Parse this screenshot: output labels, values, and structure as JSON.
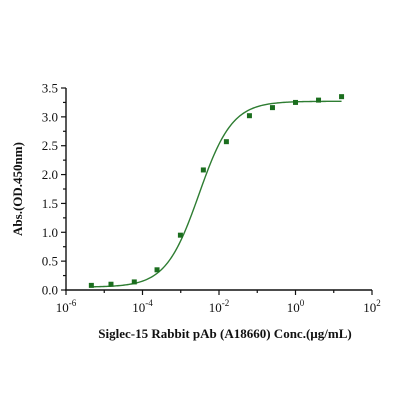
{
  "chart_data": {
    "type": "scatter",
    "xlabel": "Siglec-15 Rabbit pAb (A18660) Conc.(µg/mL)",
    "ylabel": "Abs.(OD.450nm)",
    "x_scale": "log",
    "xlim": [
      1e-06,
      100
    ],
    "ylim": [
      0,
      3.5
    ],
    "x_ticks": [
      {
        "value": 1e-06,
        "base": "10",
        "exp": "-6"
      },
      {
        "value": 0.0001,
        "base": "10",
        "exp": "-4"
      },
      {
        "value": 0.01,
        "base": "10",
        "exp": "-2"
      },
      {
        "value": 1,
        "base": "10",
        "exp": "0"
      },
      {
        "value": 100,
        "base": "10",
        "exp": "2"
      }
    ],
    "y_ticks": [
      "0.0",
      "0.5",
      "1.0",
      "1.5",
      "2.0",
      "2.5",
      "3.0",
      "3.5"
    ],
    "grid": false,
    "series": [
      {
        "color": "#1b6e1e",
        "marker": "square",
        "x": [
          4.6e-06,
          1.5e-05,
          6.1e-05,
          0.00024,
          0.00098,
          0.0039,
          0.0156,
          0.0625,
          0.25,
          1.0,
          4.0,
          16.0
        ],
        "y": [
          0.08,
          0.1,
          0.14,
          0.35,
          0.95,
          2.08,
          2.57,
          3.02,
          3.16,
          3.25,
          3.29,
          3.35
        ]
      }
    ],
    "fit_curve": {
      "color": "#2e7d32",
      "model": "4PL",
      "bottom": 0.05,
      "top": 3.27,
      "ec50": 0.003,
      "hill": 1.0
    }
  }
}
